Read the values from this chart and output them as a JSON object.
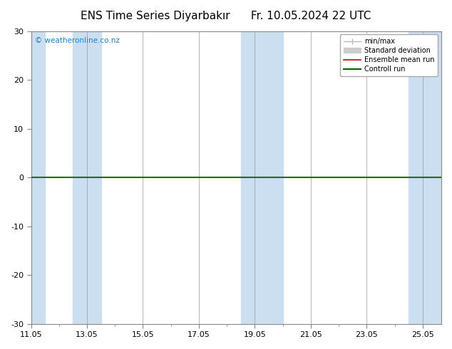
{
  "title": "ENS Time Series Diyarbakır",
  "title2": "Fr. 10.05.2024 22 UTC",
  "xlabel_ticks": [
    "11.05",
    "13.05",
    "15.05",
    "17.05",
    "19.05",
    "21.05",
    "23.05",
    "25.05"
  ],
  "xlim": [
    0,
    14.666
  ],
  "ylim": [
    -30,
    30
  ],
  "yticks": [
    -30,
    -20,
    -10,
    0,
    10,
    20,
    30
  ],
  "background_color": "#ffffff",
  "plot_bg_color": "#ffffff",
  "watermark": "© weatheronline.co.nz",
  "watermark_color": "#1a80cc",
  "legend_items": [
    {
      "label": "min/max",
      "color": "#bbbbbb",
      "lw": 1.2
    },
    {
      "label": "Standard deviation",
      "color": "#cccccc",
      "lw": 6
    },
    {
      "label": "Ensemble mean run",
      "color": "#cc0000",
      "lw": 1.2
    },
    {
      "label": "Controll run",
      "color": "#006600",
      "lw": 1.5
    }
  ],
  "shaded_columns": [
    {
      "x_start": 0.0,
      "x_end": 0.5
    },
    {
      "x_start": 1.5,
      "x_end": 2.5
    },
    {
      "x_start": 7.5,
      "x_end": 9.0
    },
    {
      "x_start": 13.5,
      "x_end": 14.666
    }
  ],
  "shaded_color": "#ccdff0",
  "zero_line_color": "#336600",
  "border_color": "#888888",
  "tick_label_size": 8,
  "title_fontsize": 11
}
